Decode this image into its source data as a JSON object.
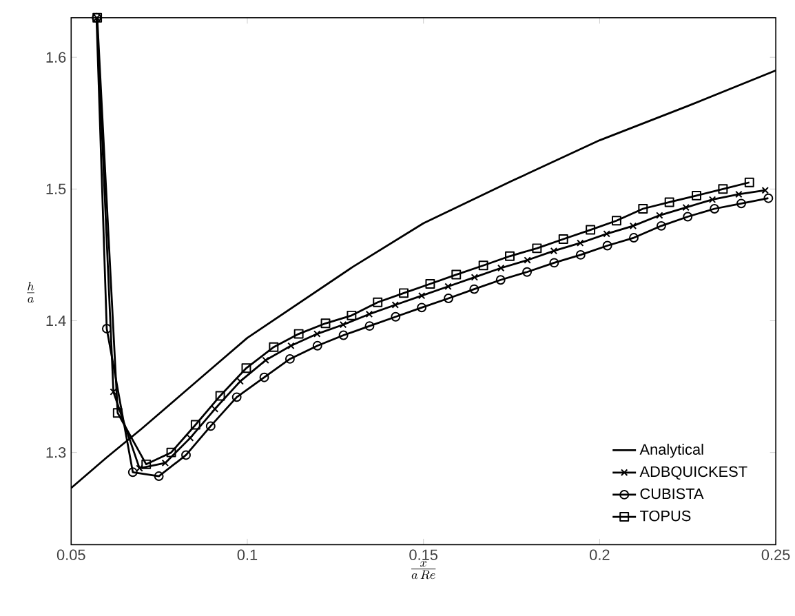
{
  "chart_data": {
    "type": "line",
    "xlabel": "\\frac{x}{a\\,Re}",
    "ylabel": "\\frac{h}{a}",
    "xlim": [
      0.05,
      0.25
    ],
    "ylim": [
      1.23,
      1.63
    ],
    "xticks": [
      0.05,
      0.1,
      0.15,
      0.2,
      0.25
    ],
    "yticks": [
      1.3,
      1.4,
      1.5,
      1.6
    ],
    "grid": false,
    "legend": "bottom right",
    "line_style": "solid",
    "series": [
      {
        "name": "Analytical",
        "color": "#000000",
        "marker": "none",
        "x": [
          0.05,
          0.06,
          0.07,
          0.08,
          0.09,
          0.1,
          0.115,
          0.13,
          0.15,
          0.175,
          0.2,
          0.225,
          0.25
        ],
        "values": [
          1.273,
          1.296,
          1.318,
          1.341,
          1.364,
          1.387,
          1.414,
          1.441,
          1.474,
          1.506,
          1.537,
          1.563,
          1.59
        ]
      },
      {
        "name": "ADBQUICKEST",
        "color": "#000000",
        "marker": "cross",
        "x": [
          0.0573,
          0.062,
          0.0694,
          0.0767,
          0.0838,
          0.0908,
          0.098,
          0.1052,
          0.1124,
          0.1198,
          0.1272,
          0.1346,
          0.142,
          0.1495,
          0.157,
          0.1645,
          0.172,
          0.1795,
          0.187,
          0.1945,
          0.202,
          0.2095,
          0.217,
          0.2245,
          0.232,
          0.2395,
          0.247
        ],
        "values": [
          1.63,
          1.346,
          1.288,
          1.292,
          1.311,
          1.333,
          1.354,
          1.37,
          1.381,
          1.39,
          1.397,
          1.405,
          1.412,
          1.419,
          1.426,
          1.433,
          1.44,
          1.446,
          1.453,
          1.459,
          1.466,
          1.472,
          1.48,
          1.486,
          1.492,
          1.496,
          1.499
        ]
      },
      {
        "name": "CUBISTA",
        "color": "#000000",
        "marker": "circle",
        "x": [
          0.0572,
          0.0601,
          0.0675,
          0.0749,
          0.0826,
          0.0896,
          0.097,
          0.1048,
          0.1121,
          0.1199,
          0.1273,
          0.1347,
          0.1421,
          0.1495,
          0.1571,
          0.1644,
          0.1719,
          0.1794,
          0.1871,
          0.1946,
          0.2022,
          0.2097,
          0.2175,
          0.225,
          0.2326,
          0.2402,
          0.2479
        ],
        "values": [
          1.63,
          1.394,
          1.285,
          1.282,
          1.298,
          1.32,
          1.342,
          1.357,
          1.371,
          1.381,
          1.389,
          1.396,
          1.403,
          1.41,
          1.417,
          1.424,
          1.431,
          1.437,
          1.444,
          1.45,
          1.457,
          1.463,
          1.472,
          1.479,
          1.485,
          1.489,
          1.493
        ]
      },
      {
        "name": "TOPUS",
        "color": "#000000",
        "marker": "square",
        "x": [
          0.0574,
          0.0632,
          0.0713,
          0.0784,
          0.0853,
          0.0923,
          0.0997,
          0.1075,
          0.1146,
          0.1222,
          0.1296,
          0.137,
          0.1444,
          0.1519,
          0.1593,
          0.167,
          0.1745,
          0.1822,
          0.1897,
          0.1974,
          0.2048,
          0.2123,
          0.2198,
          0.2275,
          0.235,
          0.2425
        ],
        "values": [
          1.63,
          1.33,
          1.291,
          1.3,
          1.321,
          1.343,
          1.364,
          1.38,
          1.39,
          1.398,
          1.404,
          1.414,
          1.421,
          1.428,
          1.435,
          1.442,
          1.449,
          1.455,
          1.462,
          1.469,
          1.476,
          1.485,
          1.49,
          1.495,
          1.5,
          1.505
        ]
      }
    ]
  }
}
